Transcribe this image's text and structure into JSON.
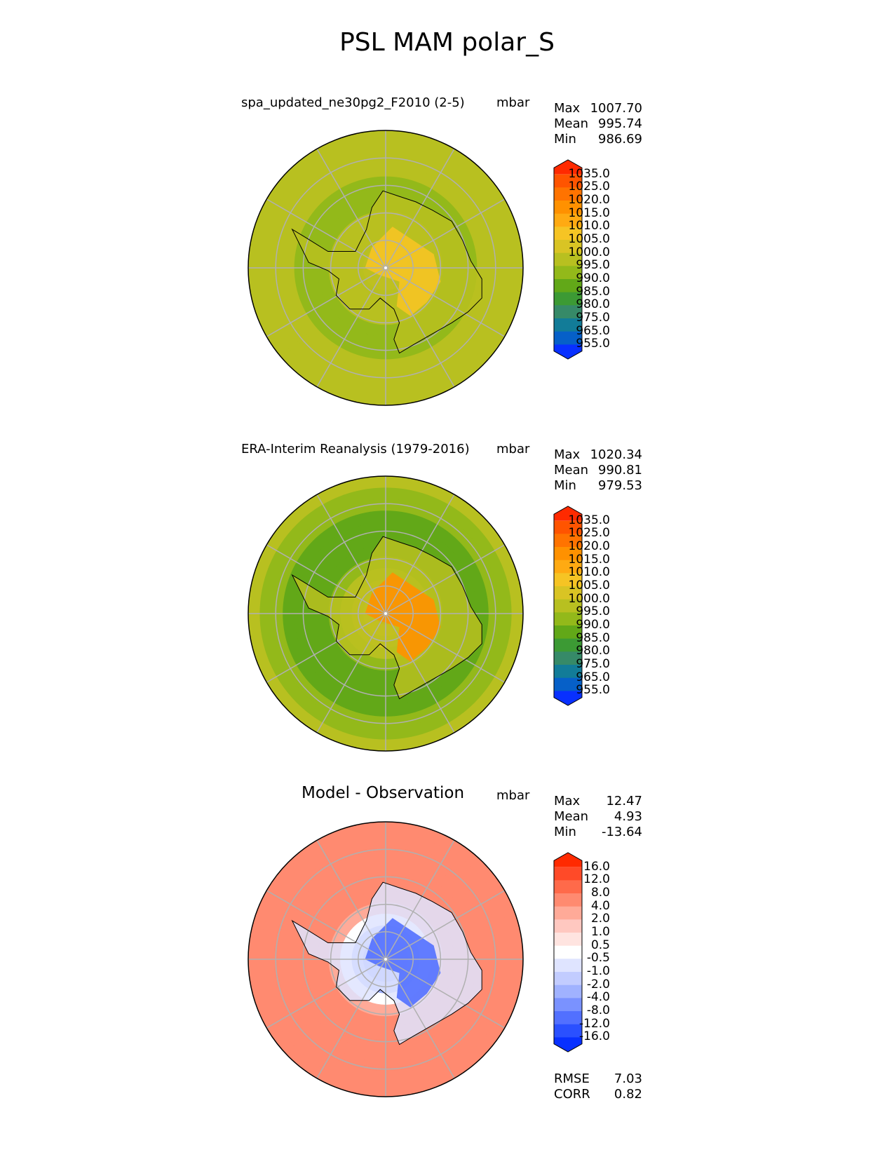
{
  "figure_title": "PSL MAM polar_S",
  "chart_data": [
    {
      "type": "heatmap",
      "projection": "south polar stereographic",
      "title": "spa_updated_ne30pg2_F2010 (2-5)",
      "units": "mbar",
      "stats": [
        {
          "label": "Max",
          "value": "1007.70"
        },
        {
          "label": "Mean",
          "value": "995.74"
        },
        {
          "label": "Min",
          "value": "986.69"
        }
      ],
      "colorbar": {
        "levels": [
          "1035.0",
          "1025.0",
          "1020.0",
          "1015.0",
          "1010.0",
          "1005.0",
          "1000.0",
          "995.0",
          "990.0",
          "985.0",
          "980.0",
          "975.0",
          "965.0",
          "955.0"
        ],
        "colors": [
          "#ff2a00",
          "#ff5400",
          "#ff7300",
          "#ff9100",
          "#ffaa12",
          "#f6c424",
          "#d9c424",
          "#b8c020",
          "#93b91a",
          "#62a818",
          "#3c9a34",
          "#368a68",
          "#127c98",
          "#0660c8",
          "#0830ff"
        ]
      },
      "field": {
        "pole_value": 1003,
        "ring_value": 992,
        "rim_value": 999,
        "continent_high": 1005
      }
    },
    {
      "type": "heatmap",
      "projection": "south polar stereographic",
      "title": "ERA-Interim Reanalysis (1979-2016)",
      "units": "mbar",
      "stats": [
        {
          "label": "Max",
          "value": "1020.34"
        },
        {
          "label": "Mean",
          "value": "990.81"
        },
        {
          "label": "Min",
          "value": "979.53"
        }
      ],
      "colorbar": {
        "levels": [
          "1035.0",
          "1025.0",
          "1020.0",
          "1015.0",
          "1010.0",
          "1005.0",
          "1000.0",
          "995.0",
          "990.0",
          "985.0",
          "980.0",
          "975.0",
          "965.0",
          "955.0"
        ],
        "colors": [
          "#ff2a00",
          "#ff5400",
          "#ff7300",
          "#ff9100",
          "#ffaa12",
          "#f6c424",
          "#d9c424",
          "#b8c020",
          "#93b91a",
          "#62a818",
          "#3c9a34",
          "#368a68",
          "#127c98",
          "#0660c8",
          "#0830ff"
        ]
      },
      "field": {
        "pole_value": 1013,
        "ring_value": 984,
        "rim_value": 995,
        "continent_high": 1018
      }
    },
    {
      "type": "heatmap",
      "projection": "south polar stereographic",
      "title": "Model - Observation",
      "units": "mbar",
      "stats": [
        {
          "label": "Max",
          "value": "12.47"
        },
        {
          "label": "Mean",
          "value": "4.93"
        },
        {
          "label": "Min",
          "value": "-13.64"
        }
      ],
      "extra_stats": [
        {
          "label": "RMSE",
          "value": "7.03"
        },
        {
          "label": "CORR",
          "value": "0.82"
        }
      ],
      "colorbar": {
        "levels": [
          "16.0",
          "12.0",
          "8.0",
          "4.0",
          "2.0",
          "1.0",
          "0.5",
          "-0.5",
          "-1.0",
          "-2.0",
          "-4.0",
          "-8.0",
          "-12.0",
          "-16.0"
        ],
        "colors": [
          "#ff2a00",
          "#ff4a28",
          "#ff6a4a",
          "#ff8a70",
          "#ffaa98",
          "#ffc8c0",
          "#ffe4e0",
          "#ffffff",
          "#dfe4ff",
          "#c2ccff",
          "#a0b2ff",
          "#7a92ff",
          "#5270ff",
          "#2a50ff",
          "#0830ff"
        ]
      },
      "field": {
        "pole_value": -8,
        "ring_value": 6,
        "rim_value": 5,
        "continent_high": -10
      }
    }
  ]
}
